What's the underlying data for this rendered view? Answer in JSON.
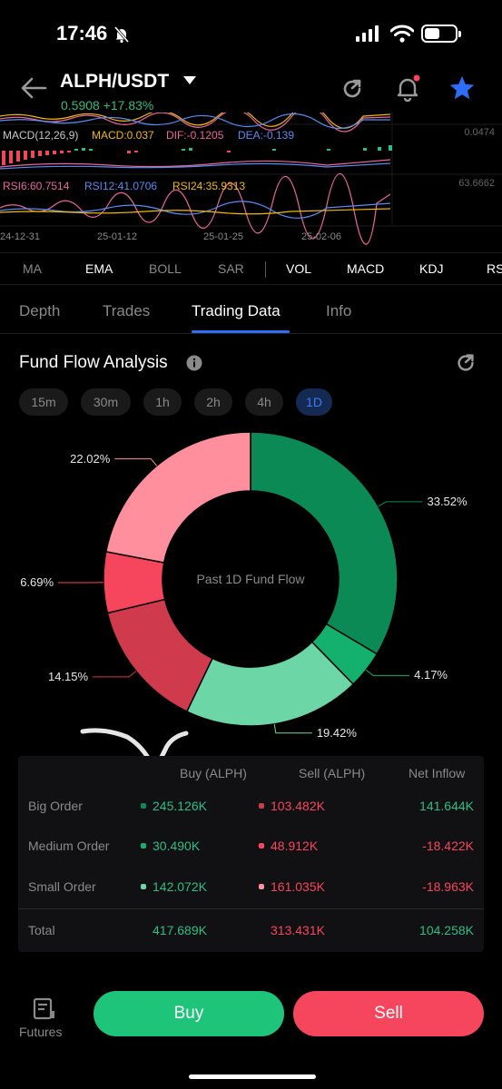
{
  "status": {
    "time": "17:46"
  },
  "header": {
    "pair": "ALPH/USDT",
    "price_line": "0.5908 +17.83%"
  },
  "chart_strip": {
    "macd": {
      "label": "MACD(12,26,9)",
      "macd": "MACD:0.037",
      "dif": "DIF:-0.1205",
      "dea": "DEA:-0.139",
      "axis": "0.0474"
    },
    "rsi": {
      "rsi6": "RSI6:60.7514",
      "rsi12": "RSI12:41.0706",
      "rsi24": "RSI24:35.9313",
      "axis": "63.6662"
    },
    "dates": [
      "24-12-31",
      "25-01-12",
      "25-01-25",
      "25-02-06"
    ]
  },
  "indicator_tabs": [
    "MA",
    "EMA",
    "BOLL",
    "SAR",
    "VOL",
    "MACD",
    "KDJ",
    "RS"
  ],
  "main_tabs": [
    "Depth",
    "Trades",
    "Trading Data",
    "Info"
  ],
  "fund_flow": {
    "title": "Fund Flow Analysis",
    "timeframes": [
      "15m",
      "30m",
      "1h",
      "2h",
      "4h",
      "1D"
    ],
    "active_timeframe": "1D",
    "center_label": "Past 1D Fund Flow"
  },
  "chart_data": {
    "type": "pie",
    "donut": true,
    "slices": [
      {
        "label": "33.52%",
        "value": 33.52,
        "color": "#0b8a55"
      },
      {
        "label": "4.17%",
        "value": 4.17,
        "color": "#14b06d"
      },
      {
        "label": "19.42%",
        "value": 19.42,
        "color": "#6dd6a7"
      },
      {
        "label": "14.15%",
        "value": 14.15,
        "color": "#cf3a4c"
      },
      {
        "label": "6.69%",
        "value": 6.69,
        "color": "#f6465d"
      },
      {
        "label": "22.02%",
        "value": 22.02,
        "color": "#ff8f9c"
      }
    ]
  },
  "table": {
    "headers": [
      "Buy (ALPH)",
      "Sell (ALPH)",
      "Net Inflow"
    ],
    "rows": [
      {
        "label": "Big Order",
        "buy": "245.126K",
        "sell": "103.482K",
        "net": "141.644K",
        "buy_dot": "#0b8a55",
        "sell_dot": "#cf3a4c",
        "net_color": "#2ebd85"
      },
      {
        "label": "Medium Order",
        "buy": "30.490K",
        "sell": "48.912K",
        "net": "-18.422K",
        "buy_dot": "#14b06d",
        "sell_dot": "#f6465d",
        "net_color": "#f6465d"
      },
      {
        "label": "Small Order",
        "buy": "142.072K",
        "sell": "161.035K",
        "net": "-18.963K",
        "buy_dot": "#6dd6a7",
        "sell_dot": "#ff8f9c",
        "net_color": "#f6465d"
      }
    ],
    "total": {
      "label": "Total",
      "buy": "417.689K",
      "sell": "313.431K",
      "net": "104.258K"
    }
  },
  "bottom": {
    "futures": "Futures",
    "buy": "Buy",
    "sell": "Sell"
  }
}
